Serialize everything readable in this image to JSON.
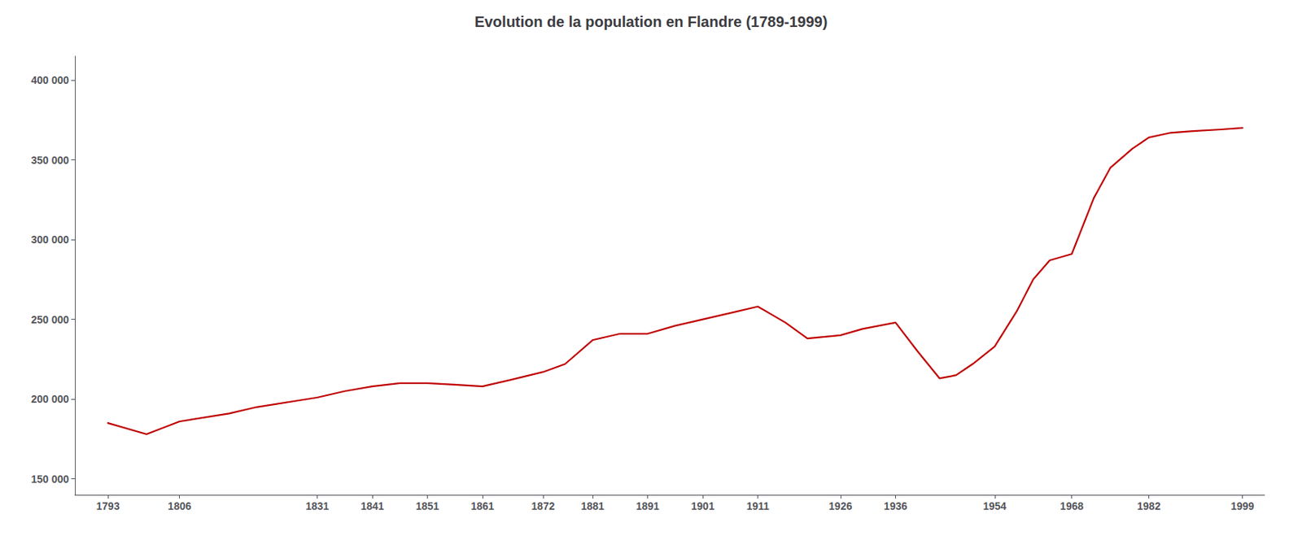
{
  "chart_data": {
    "type": "line",
    "title": "Evolution de la population en Flandre (1789-1999)",
    "x": [
      1793,
      1800,
      1806,
      1815,
      1820,
      1831,
      1836,
      1841,
      1846,
      1851,
      1856,
      1861,
      1866,
      1872,
      1876,
      1881,
      1886,
      1891,
      1896,
      1901,
      1906,
      1911,
      1916,
      1920,
      1926,
      1930,
      1936,
      1940,
      1944,
      1947,
      1950,
      1954,
      1958,
      1961,
      1964,
      1968,
      1972,
      1975,
      1979,
      1982,
      1986,
      1990,
      1995,
      1999
    ],
    "values": [
      185000,
      178000,
      186000,
      191000,
      195000,
      201000,
      205000,
      208000,
      210000,
      210000,
      209000,
      208000,
      212000,
      217000,
      222000,
      237000,
      241000,
      241000,
      246000,
      250000,
      254000,
      258000,
      248000,
      238000,
      240000,
      244000,
      248000,
      230000,
      213000,
      215000,
      222000,
      233000,
      255000,
      275000,
      287000,
      291000,
      326000,
      345000,
      357000,
      364000,
      367000,
      368000,
      369000,
      370000
    ],
    "color": "#c00000",
    "xlim": [
      1787,
      2003
    ],
    "xticks": [
      1793,
      1806,
      1831,
      1841,
      1851,
      1861,
      1872,
      1881,
      1891,
      1901,
      1911,
      1926,
      1936,
      1954,
      1968,
      1982,
      1999
    ],
    "ylim": [
      140000,
      415000
    ],
    "yticks": [
      {
        "value": 150000,
        "label": "150 000"
      },
      {
        "value": 200000,
        "label": "200 000"
      },
      {
        "value": 250000,
        "label": "250 000"
      },
      {
        "value": 300000,
        "label": "300 000"
      },
      {
        "value": 350000,
        "label": "350 000"
      },
      {
        "value": 400000,
        "label": "400 000"
      }
    ],
    "grid": false
  }
}
